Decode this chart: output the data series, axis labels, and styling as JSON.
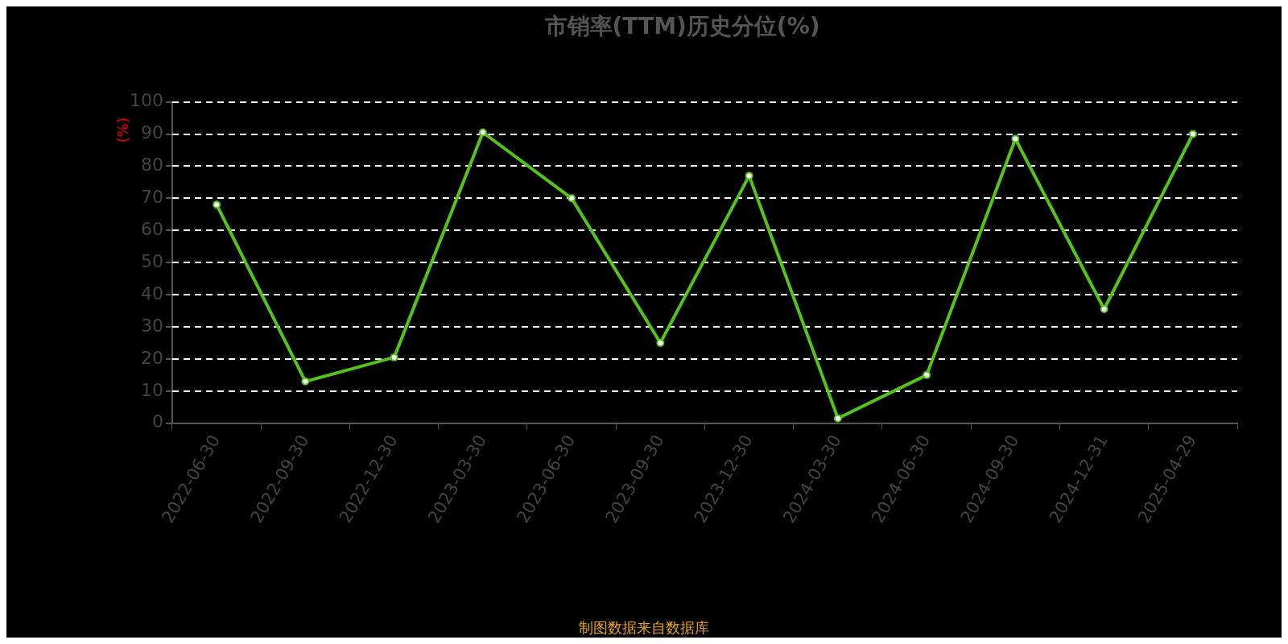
{
  "chart_data": {
    "type": "line",
    "title": "市销率(TTM)历史分位(%)",
    "ylabel": "(%)",
    "categories": [
      "2022-06-30",
      "2022-09-30",
      "2022-12-30",
      "2023-03-30",
      "2023-06-30",
      "2023-09-30",
      "2023-12-30",
      "2024-03-30",
      "2024-06-30",
      "2024-09-30",
      "2024-12-31",
      "2025-04-29"
    ],
    "series": [
      {
        "color": "#52c41a",
        "values": [
          68,
          13,
          20.5,
          90.5,
          70,
          25,
          77,
          1.5,
          15,
          88.5,
          35.5,
          90
        ]
      }
    ],
    "ylim": [
      0,
      100
    ],
    "yticks": [
      0,
      10,
      20,
      30,
      40,
      50,
      60,
      70,
      80,
      90,
      100
    ],
    "grid": "y",
    "legend": false,
    "marker": "circle",
    "line_style": "solid",
    "annotations": [
      "制图数据来自数据库"
    ]
  }
}
